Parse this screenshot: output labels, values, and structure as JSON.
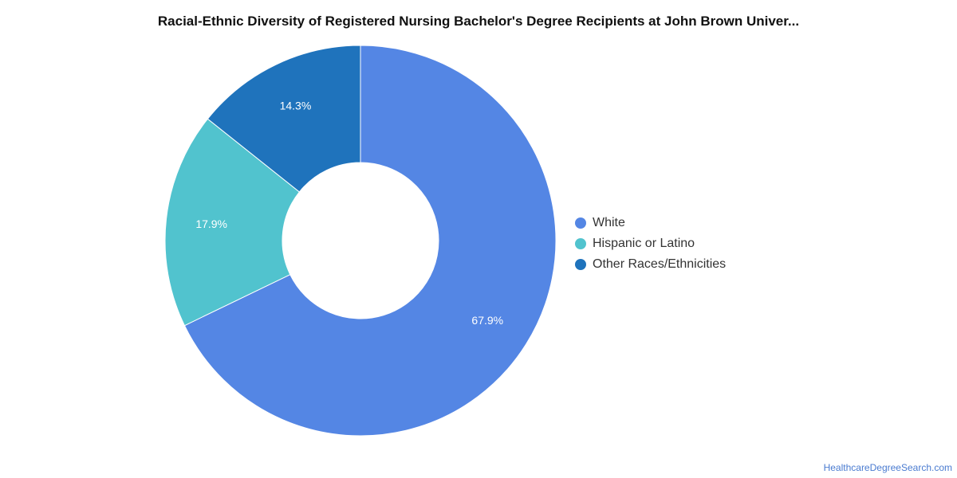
{
  "chart_data": {
    "type": "pie",
    "variant": "donut",
    "title": "Racial-Ethnic Diversity of Registered Nursing Bachelor's Degree Recipients at John Brown Univer...",
    "categories": [
      "White",
      "Hispanic or Latino",
      "Other Races/Ethnicities"
    ],
    "values": [
      67.9,
      17.9,
      14.3
    ],
    "labels": [
      "67.9%",
      "17.9%",
      "14.3%"
    ],
    "colors": [
      "#5486e4",
      "#51c3ce",
      "#1f73bc"
    ],
    "legend_position": "right"
  },
  "source": "HealthcareDegreeSearch.com"
}
